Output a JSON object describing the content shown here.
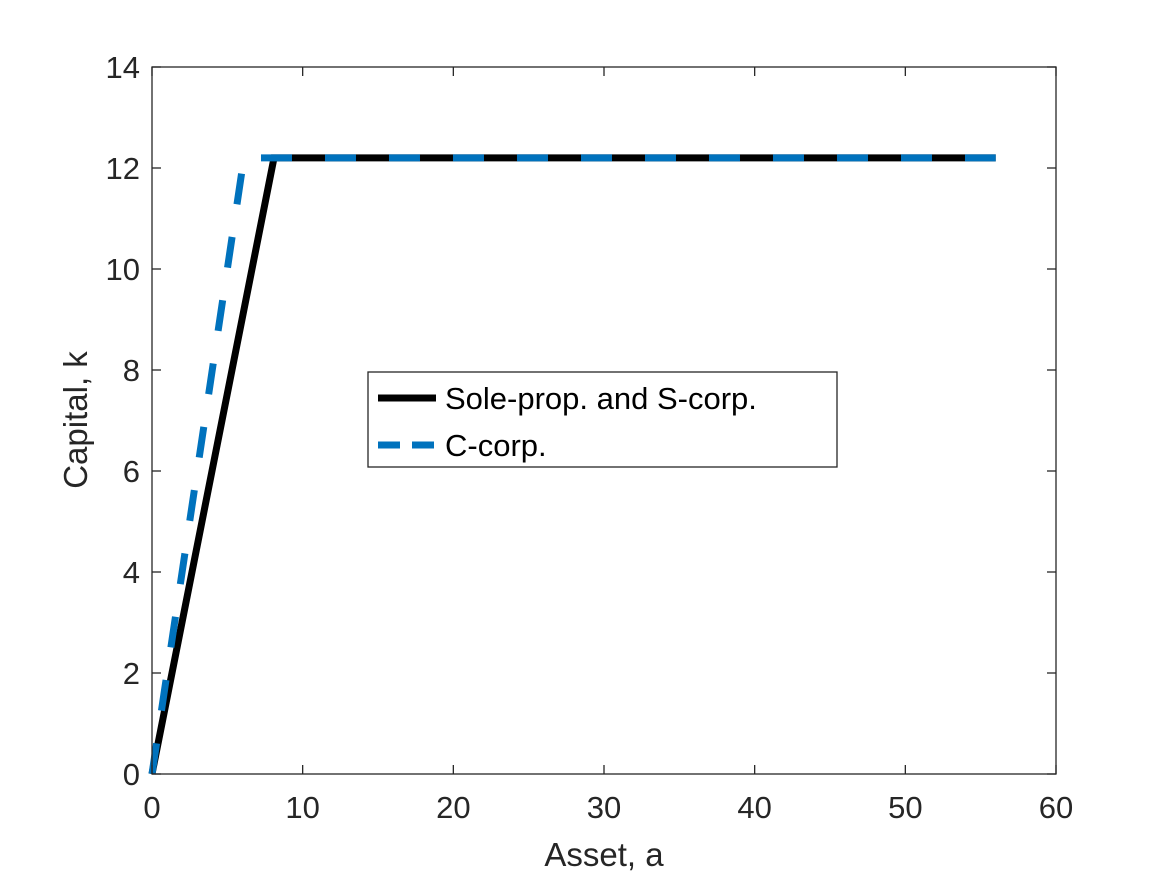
{
  "chart_data": {
    "type": "line",
    "title": "",
    "xlabel": "Asset, a",
    "ylabel": "Capital, k",
    "xlim": [
      0,
      60
    ],
    "ylim": [
      0,
      14
    ],
    "xticks": [
      0,
      10,
      20,
      30,
      40,
      50,
      60
    ],
    "yticks": [
      0,
      2,
      4,
      6,
      8,
      10,
      12,
      14
    ],
    "grid": false,
    "box": true,
    "legend_position": "center",
    "series": [
      {
        "name": "Sole-prop. and S-corp.",
        "color": "#000000",
        "line_style": "solid",
        "x": [
          0,
          8.1,
          56
        ],
        "y": [
          0,
          12.2,
          12.2
        ]
      },
      {
        "name": "C-corp.",
        "color": "#0072BD",
        "line_style": "dashed",
        "x": [
          0,
          6.1,
          56
        ],
        "y": [
          0,
          12.2,
          12.2
        ]
      }
    ]
  }
}
